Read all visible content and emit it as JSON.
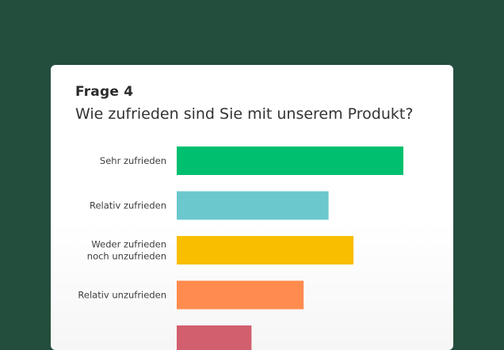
{
  "question": {
    "number": "Frage 4",
    "text": "Wie zufrieden sind Sie mit unserem Produkt?"
  },
  "chart_data": {
    "type": "bar",
    "orientation": "horizontal",
    "categories": [
      [
        "Sehr zufrieden"
      ],
      [
        "Relativ zufrieden"
      ],
      [
        "Weder zufrieden",
        "noch unzufrieden"
      ],
      [
        "Relativ unzufrieden"
      ],
      [
        ""
      ]
    ],
    "values": [
      100,
      67,
      78,
      56,
      33
    ],
    "colors": [
      "#00bf6f",
      "#6bc8cd",
      "#f9be00",
      "#ff8b4f",
      "#d25f6e"
    ],
    "xlim": [
      0,
      100
    ],
    "grid": false,
    "legend": "none"
  }
}
